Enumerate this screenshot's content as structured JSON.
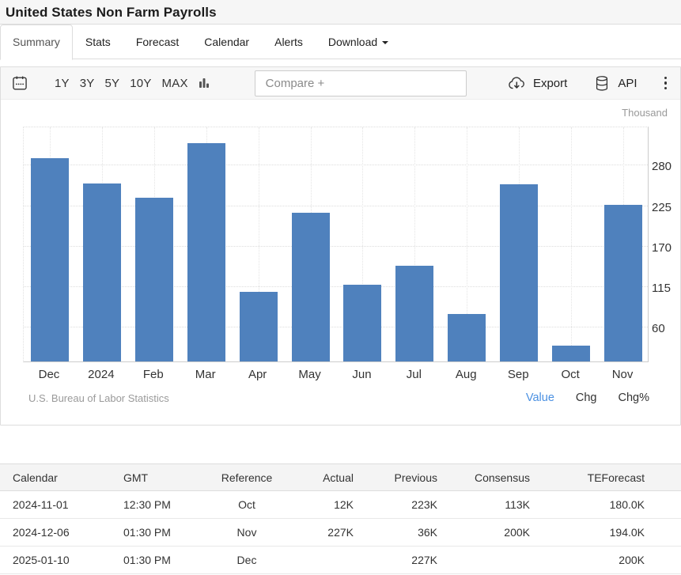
{
  "header": {
    "title": "United States Non Farm Payrolls"
  },
  "tabs": [
    {
      "label": "Summary",
      "active": true
    },
    {
      "label": "Stats",
      "active": false
    },
    {
      "label": "Forecast",
      "active": false
    },
    {
      "label": "Calendar",
      "active": false
    },
    {
      "label": "Alerts",
      "active": false
    },
    {
      "label": "Download",
      "active": false,
      "dropdown": true
    }
  ],
  "toolbar": {
    "calendar_icon": "calendar-icon",
    "ranges": [
      "1Y",
      "3Y",
      "5Y",
      "10Y",
      "MAX"
    ],
    "chart_type_icon": "bar-chart-icon",
    "compare_placeholder": "Compare +",
    "export_label": "Export",
    "export_icon": "cloud-download-icon",
    "api_label": "API",
    "api_icon": "database-icon",
    "menu_icon": "kebab-menu-icon"
  },
  "chart_data": {
    "type": "bar",
    "title": "United States Non Farm Payrolls",
    "unit_label": "Thousand",
    "categories": [
      "Dec",
      "2024",
      "Feb",
      "Mar",
      "Apr",
      "May",
      "Jun",
      "Jul",
      "Aug",
      "Sep",
      "Oct",
      "Nov"
    ],
    "values": [
      290,
      256,
      236,
      310,
      108,
      216,
      118,
      144,
      78,
      255,
      36,
      227
    ],
    "xlabel": "",
    "ylabel": "Thousand",
    "yticks": [
      60,
      115,
      170,
      225,
      280
    ],
    "ylim": [
      14,
      334
    ],
    "grid": "dotted",
    "legend": "none",
    "bar_color": "#4f81bd",
    "source": "U.S. Bureau of Labor Statistics",
    "modes": [
      {
        "label": "Value",
        "active": true
      },
      {
        "label": "Chg",
        "active": false
      },
      {
        "label": "Chg%",
        "active": false
      }
    ]
  },
  "table": {
    "headers": [
      "Calendar",
      "GMT",
      "Reference",
      "Actual",
      "Previous",
      "Consensus",
      "TEForecast"
    ],
    "column_alignments": [
      "left",
      "left",
      "center",
      "right",
      "right",
      "right",
      "right"
    ],
    "rows": [
      [
        "2024-11-01",
        "12:30 PM",
        "Oct",
        "12K",
        "223K",
        "113K",
        "180.0K"
      ],
      [
        "2024-12-06",
        "01:30 PM",
        "Nov",
        "227K",
        "36K",
        "200K",
        "194.0K"
      ],
      [
        "2025-01-10",
        "01:30 PM",
        "Dec",
        "",
        "227K",
        "",
        "200K"
      ]
    ]
  },
  "colors": {
    "accent_blue": "#4f81bd",
    "link_blue": "#4a90e2"
  }
}
